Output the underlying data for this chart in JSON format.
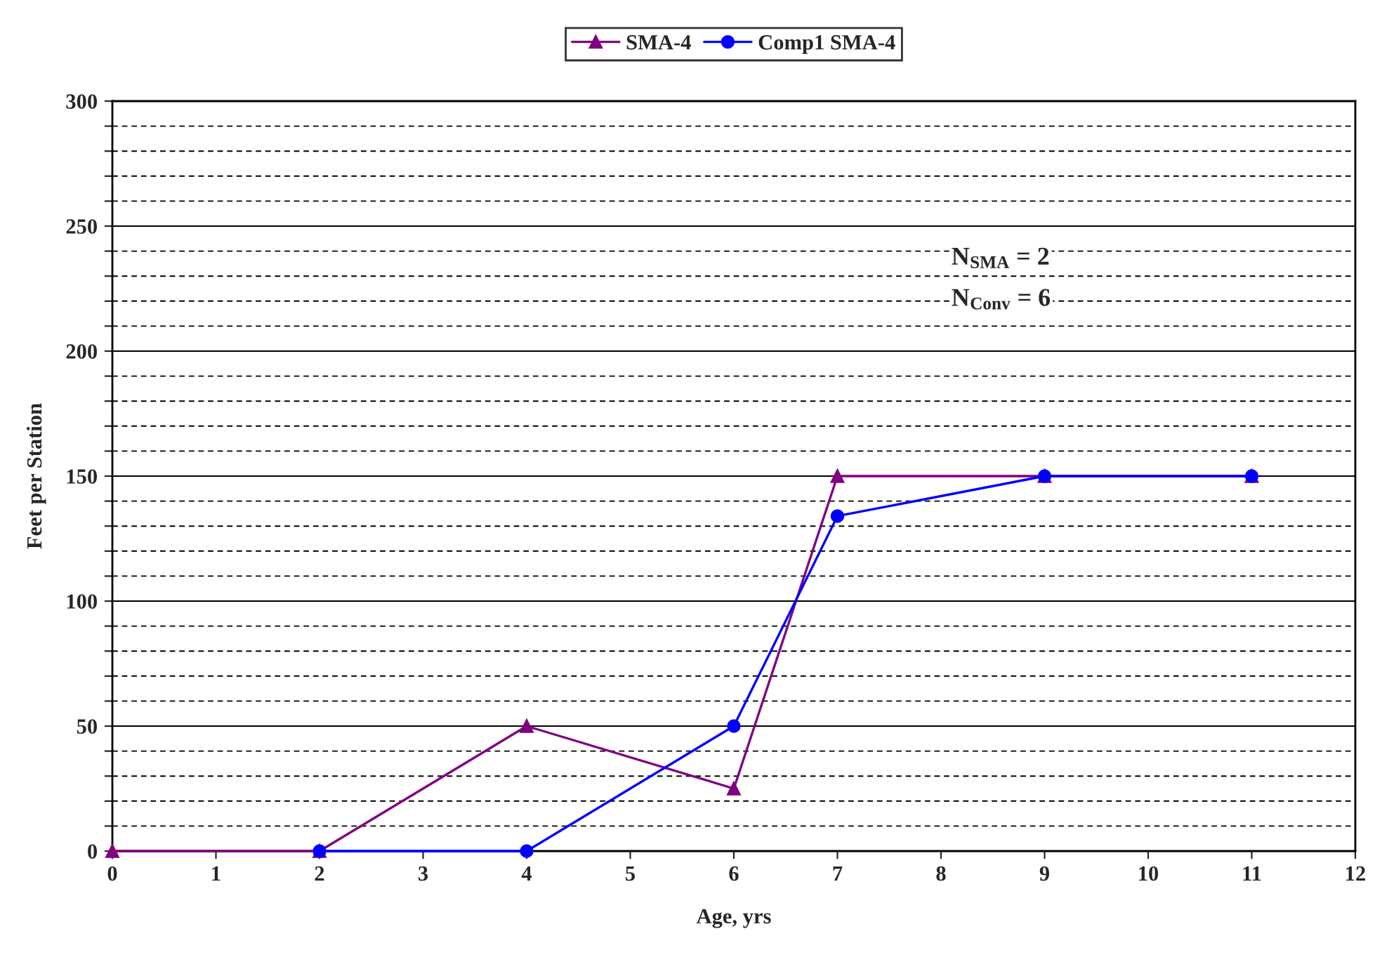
{
  "chart_data": {
    "type": "line",
    "xlabel": "Age, yrs",
    "ylabel": "Feet per Station",
    "series": [
      {
        "name": "SMA-4",
        "color": "#800080",
        "marker": "triangle",
        "x": [
          0,
          2,
          4,
          6,
          7,
          9,
          11
        ],
        "values": [
          0,
          0,
          50,
          25,
          150,
          150,
          150
        ]
      },
      {
        "name": "Comp1 SMA-4",
        "color": "#0000ff",
        "marker": "circle",
        "x": [
          2,
          4,
          6,
          7,
          9,
          11
        ],
        "values": [
          0,
          0,
          50,
          134,
          150,
          150
        ]
      }
    ],
    "xlim": [
      0,
      12
    ],
    "xticks": [
      0,
      1,
      2,
      3,
      4,
      5,
      6,
      7,
      8,
      9,
      10,
      11,
      12
    ],
    "ylim": [
      0,
      300
    ],
    "yticks": [
      0,
      {
        "value": 10,
        "label": null
      },
      {
        "value": 20,
        "label": null
      },
      {
        "value": 30,
        "label": null
      },
      {
        "value": 40,
        "label": null
      },
      50,
      {
        "value": 60,
        "label": null
      },
      {
        "value": 70,
        "label": null
      },
      {
        "value": 80,
        "label": null
      },
      {
        "value": 90,
        "label": null
      },
      100,
      {
        "value": 110,
        "label": null
      },
      {
        "value": 120,
        "label": null
      },
      {
        "value": 130,
        "label": null
      },
      {
        "value": 140,
        "label": null
      },
      150,
      {
        "value": 160,
        "label": null
      },
      {
        "value": 170,
        "label": null
      },
      {
        "value": 180,
        "label": null
      },
      {
        "value": 190,
        "label": null
      },
      200,
      {
        "value": 210,
        "label": null
      },
      {
        "value": 220,
        "label": null
      },
      {
        "value": 230,
        "label": null
      },
      {
        "value": 240,
        "label": null
      },
      250,
      {
        "value": 260,
        "label": null
      },
      {
        "value": 270,
        "label": null
      },
      {
        "value": 280,
        "label": null
      },
      {
        "value": 290,
        "label": null
      },
      300
    ],
    "grid": "y",
    "legend": "top",
    "line_style": "solid",
    "annotations": [
      "N$_{SMA}$ = 2",
      "N$_{Conv}$ = 6"
    ]
  }
}
